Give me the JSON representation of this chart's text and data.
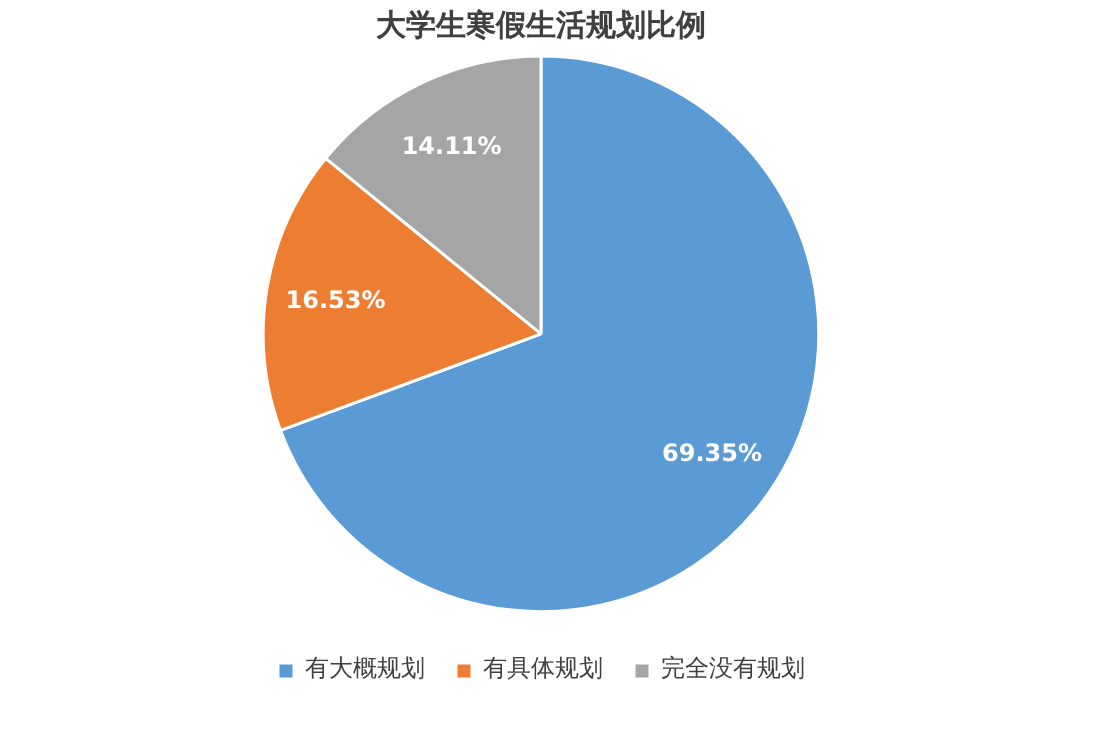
{
  "chart_data": {
    "type": "pie",
    "title": "大学生寒假生活规划比例",
    "categories": [
      "有大概规划",
      "有具体规划",
      "完全没有规划"
    ],
    "values": [
      69.35,
      16.53,
      14.11
    ],
    "colors": [
      "#5b9bd5",
      "#ed7d31",
      "#a5a5a5"
    ],
    "value_labels": [
      "69.35%",
      "16.53%",
      "14.11%"
    ],
    "legend": "bottom"
  }
}
